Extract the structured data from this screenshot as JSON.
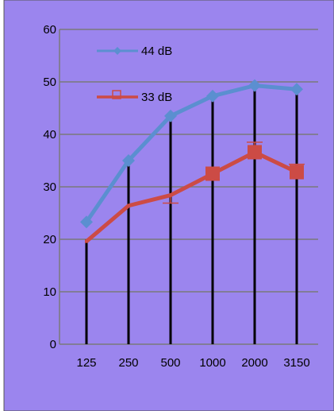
{
  "chart_data": {
    "type": "line",
    "categories": [
      "125",
      "250",
      "500",
      "1000",
      "2000",
      "3150"
    ],
    "ylim": [
      0,
      60
    ],
    "yticks": [
      0,
      10,
      20,
      30,
      40,
      50,
      60
    ],
    "grid": true,
    "legend_placement": "top-left",
    "background": "#9b85ee",
    "grid_color": "#7a7a7a",
    "vertical_lines": {
      "color": "#000000",
      "tops": [
        20,
        34.5,
        42.5,
        47,
        49,
        48.5
      ]
    },
    "series": [
      {
        "name": "44 dB",
        "color": "#5b8fd0",
        "marker": "diamond",
        "values": [
          23.3,
          35,
          43.5,
          47.3,
          49.3,
          48.6
        ]
      },
      {
        "name": "33 dB",
        "color": "#cc4b45",
        "marker": "square",
        "values": [
          19.6,
          26.4,
          28.4,
          32.5,
          36.6,
          32.8
        ],
        "error_high": [
          null,
          null,
          null,
          null,
          38.5,
          34.3
        ],
        "error_low": [
          null,
          null,
          26.9,
          null,
          null,
          null
        ]
      }
    ]
  }
}
